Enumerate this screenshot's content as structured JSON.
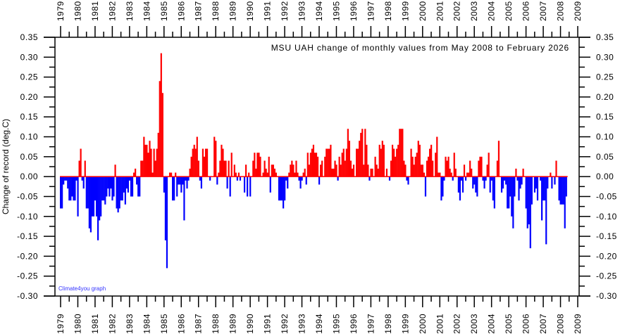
{
  "chart_data": {
    "type": "bar",
    "title": "MSU UAH change of monthly values from May 2008 to February 2026",
    "ylabel": "Change of record (deg.C)",
    "xlabel": "",
    "credit": "Climate4you graph",
    "x_start": "1979-01",
    "x_step": "month",
    "xlim": [
      1979,
      2009
    ],
    "ylim": [
      -0.3,
      0.35
    ],
    "xticks": [
      1979,
      1980,
      1981,
      1982,
      1983,
      1984,
      1985,
      1986,
      1987,
      1988,
      1989,
      1990,
      1991,
      1992,
      1993,
      1994,
      1995,
      1996,
      1997,
      1998,
      1999,
      2000,
      2001,
      2002,
      2003,
      2004,
      2005,
      2006,
      2007,
      2008,
      2009
    ],
    "yticks": [
      "0.35",
      "0.30",
      "0.25",
      "0.20",
      "0.15",
      "0.10",
      "0.05",
      "0.00",
      "-0.05",
      "-0.10",
      "-0.15",
      "-0.20",
      "-0.25",
      "-0.30"
    ],
    "grid": false,
    "colors": {
      "positive": "#ff0000",
      "negative": "#0000ff",
      "credit": "#3333ff"
    },
    "values": [
      -0.08,
      -0.08,
      -0.02,
      -0.01,
      -0.01,
      -0.03,
      -0.06,
      -0.06,
      -0.05,
      -0.06,
      -0.06,
      -0.01,
      -0.1,
      0.04,
      0.07,
      -0.01,
      -0.03,
      0.04,
      -0.08,
      -0.08,
      -0.13,
      -0.14,
      -0.1,
      -0.1,
      -0.06,
      -0.1,
      -0.16,
      -0.11,
      -0.1,
      -0.06,
      -0.06,
      -0.07,
      -0.05,
      -0.03,
      -0.05,
      -0.03,
      -0.06,
      -0.05,
      0.03,
      -0.08,
      -0.09,
      -0.08,
      -0.06,
      -0.06,
      -0.04,
      -0.07,
      -0.03,
      -0.04,
      -0.01,
      -0.05,
      -0.05,
      0.01,
      0.02,
      -0.02,
      -0.05,
      -0.05,
      0.04,
      0.04,
      0.1,
      0.08,
      0.08,
      0.06,
      0.09,
      0.07,
      0.01,
      0.07,
      0.04,
      0.07,
      0.11,
      0.24,
      0.31,
      0.21,
      -0.04,
      -0.16,
      -0.23,
      0,
      0.01,
      0.01,
      -0.06,
      -0.06,
      0.01,
      -0.05,
      -0.02,
      -0.02,
      -0.04,
      -0.02,
      -0.11,
      -0.01,
      -0.03,
      -0.01,
      0.02,
      0.05,
      0.07,
      0.08,
      0.07,
      0.1,
      0.04,
      -0.01,
      -0.03,
      0.07,
      0.05,
      0.07,
      0.07,
      0,
      -0.01,
      0,
      0,
      0.1,
      0.09,
      -0.02,
      0.01,
      0.04,
      0.08,
      0.07,
      0.04,
      0.04,
      -0.03,
      0.04,
      -0.05,
      0.06,
      0,
      0.03,
      0.01,
      -0.01,
      0.01,
      -0.01,
      0,
      0,
      -0.04,
      0.03,
      -0.05,
      0.01,
      -0.05,
      0,
      0.04,
      0.06,
      0.02,
      0.06,
      0.06,
      0.05,
      0,
      0.01,
      0.04,
      0.02,
      0.01,
      0.05,
      -0.04,
      0.03,
      0.03,
      0.02,
      0.01,
      0,
      -0.06,
      -0.06,
      -0.06,
      -0.08,
      -0.06,
      -0.01,
      -0.03,
      0.01,
      0.03,
      0.04,
      0.03,
      0.01,
      0.04,
      0.01,
      -0.01,
      -0.03,
      -0.01,
      0.01,
      0.02,
      -0.02,
      0.06,
      0.03,
      0.06,
      0.07,
      0.08,
      0.06,
      0.06,
      0.05,
      -0.02,
      0.03,
      0.04,
      0,
      0.05,
      0.07,
      0.07,
      0.07,
      0.08,
      0.02,
      0.02,
      0.04,
      0.03,
      -0.01,
      0.05,
      0.03,
      0.06,
      0.07,
      0.04,
      0.07,
      0.12,
      0.09,
      0.04,
      0.02,
      0.03,
      0,
      0.07,
      0.07,
      0.09,
      0.11,
      0.12,
      0.03,
      0.12,
      0.08,
      0.03,
      -0.01,
      0.02,
      0.02,
      0,
      0.05,
      0.03,
      0.02,
      0.08,
      0.07,
      0.09,
      0.08,
      0,
      0.02,
      0,
      -0.01,
      0.04,
      0.08,
      0.07,
      0.05,
      0.07,
      0.08,
      0.12,
      0.12,
      0.12,
      0.04,
      0.03,
      -0.01,
      -0.02,
      0,
      0.07,
      0.05,
      0.03,
      0.05,
      0.06,
      0.09,
      0.08,
      0.03,
      0.03,
      0.01,
      -0.05,
      0.04,
      0.05,
      0.07,
      0.08,
      0.04,
      0,
      0.06,
      0.1,
      0.01,
      0.01,
      -0.06,
      -0.05,
      -0.01,
      0.05,
      0.04,
      0.05,
      0.02,
      0.01,
      -0.01,
      0.06,
      0.02,
      0,
      -0.04,
      -0.06,
      -0.01,
      -0.04,
      0.03,
      -0.01,
      0.01,
      0.01,
      0.04,
      0.02,
      -0.03,
      -0.02,
      -0.04,
      -0.05,
      0.04,
      0.05,
      0.05,
      -0.01,
      -0.03,
      -0.01,
      0.03,
      0.06,
      -0.04,
      -0.01,
      -0.06,
      -0.08,
      0,
      0.04,
      0.09,
      0,
      -0.04,
      -0.03,
      -0.01,
      -0.02,
      -0.08,
      -0.08,
      -0.05,
      -0.1,
      -0.13,
      -0.05,
      0.02,
      -0.01,
      -0.06,
      -0.03,
      -0.02,
      0.02,
      0,
      -0.08,
      -0.13,
      -0.12,
      -0.18,
      -0.07,
      0,
      -0.04,
      -0.03,
      -0.06,
      0,
      -0.01,
      -0.11,
      -0.06,
      -0.06,
      -0.17,
      -0.03,
      0,
      0.01,
      -0.03,
      0,
      -0.02,
      0.04,
      0,
      -0.06,
      -0.07,
      -0.07,
      -0.07,
      -0.13,
      -0.05
    ]
  }
}
